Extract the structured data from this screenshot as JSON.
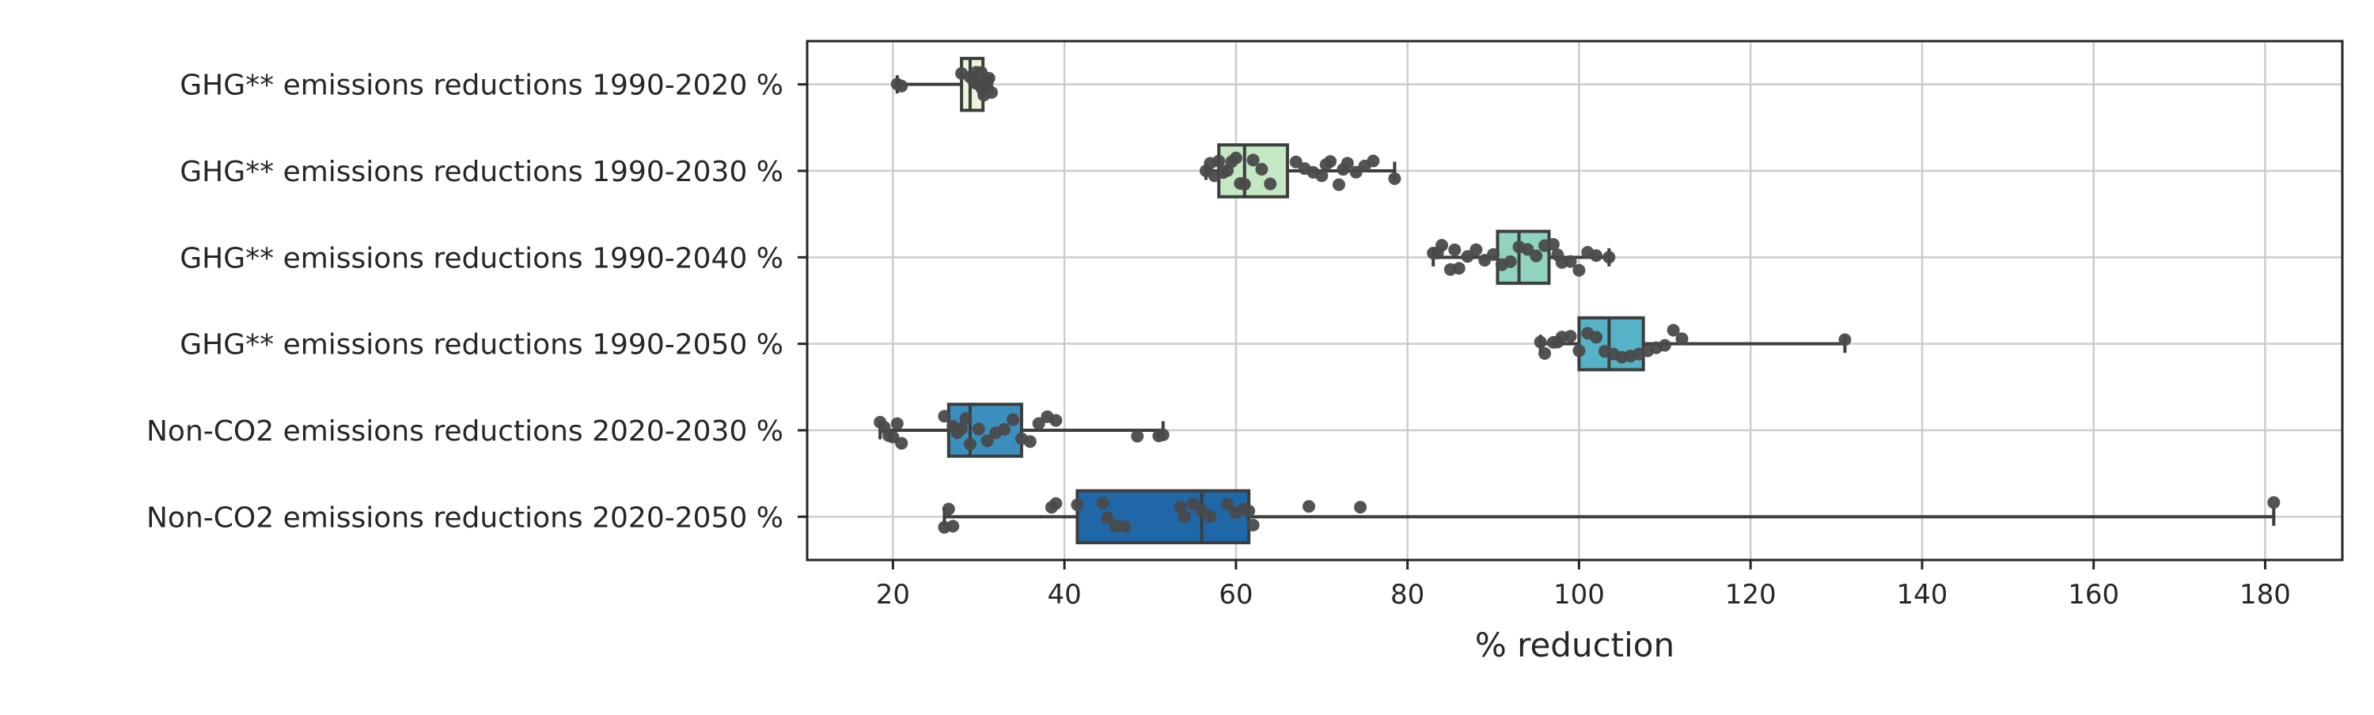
{
  "chart_data": {
    "type": "boxplot",
    "orientation": "horizontal",
    "xlabel": "% reduction",
    "ylabel": "",
    "xlim": [
      10,
      189
    ],
    "xticks": [
      20,
      40,
      60,
      80,
      100,
      120,
      140,
      160,
      180
    ],
    "grid": true,
    "categories": [
      "GHG** emissions reductions 1990-2020 %",
      "GHG** emissions reductions 1990-2030 %",
      "GHG** emissions reductions 1990-2040 %",
      "GHG** emissions reductions 1990-2050 %",
      "Non-CO2 emissions reductions 2020-2030 %",
      "Non-CO2 emissions reductions 2020-2050 %"
    ],
    "boxes": [
      {
        "whisker_low": 20.5,
        "q1": 28,
        "median": 29,
        "q3": 30.5,
        "whisker_high": 31.5,
        "color": "#e9f5da"
      },
      {
        "whisker_low": 56.5,
        "q1": 58,
        "median": 61,
        "q3": 66,
        "whisker_high": 78.5,
        "color": "#c5e8c4"
      },
      {
        "whisker_low": 83,
        "q1": 90.5,
        "median": 93,
        "q3": 96.5,
        "whisker_high": 103.5,
        "color": "#8fd3c0"
      },
      {
        "whisker_low": 95.5,
        "q1": 100,
        "median": 103.5,
        "q3": 107.5,
        "whisker_high": 131,
        "color": "#55b2c7"
      },
      {
        "whisker_low": 18.5,
        "q1": 26.5,
        "median": 29,
        "q3": 35,
        "whisker_high": 51.5,
        "color": "#3a8fbc"
      },
      {
        "whisker_low": 26,
        "q1": 41.5,
        "median": 56,
        "q3": 61.5,
        "whisker_high": 181,
        "color": "#1f67a6"
      }
    ],
    "points": [
      [
        20.5,
        21,
        28,
        29,
        29.5,
        30,
        30.3,
        30.6,
        30.8,
        31,
        31.2,
        31.5,
        30.4,
        29.7
      ],
      [
        56.5,
        57,
        57.5,
        58,
        58.5,
        59,
        59.5,
        60,
        60.5,
        61,
        62,
        63,
        64,
        67,
        68,
        69,
        70,
        70.5,
        71,
        72,
        72.5,
        73,
        74,
        75,
        76,
        78.5
      ],
      [
        83,
        83.5,
        84,
        85,
        85.5,
        86,
        87,
        88,
        89,
        90,
        91,
        92,
        93,
        94,
        95,
        96,
        97,
        97.5,
        98,
        99,
        100,
        101,
        102,
        103.5
      ],
      [
        95.5,
        96,
        97,
        97.5,
        98,
        99,
        100,
        101,
        102,
        103,
        104,
        105,
        106,
        107,
        108,
        109,
        110,
        111,
        112,
        131
      ],
      [
        18.5,
        19,
        19.5,
        20,
        20.5,
        21,
        26,
        27,
        27.5,
        28,
        28.5,
        29,
        30,
        31,
        32,
        33,
        34,
        35,
        36,
        37,
        38,
        39,
        48.5,
        51,
        51.5
      ],
      [
        26,
        26.5,
        27,
        38.5,
        39,
        41.5,
        44.5,
        45,
        46,
        47,
        53.5,
        54,
        55,
        56,
        57,
        59,
        60,
        61,
        61.5,
        62,
        68.5,
        74.5,
        181
      ]
    ],
    "point_color": "#4a4a4a"
  }
}
